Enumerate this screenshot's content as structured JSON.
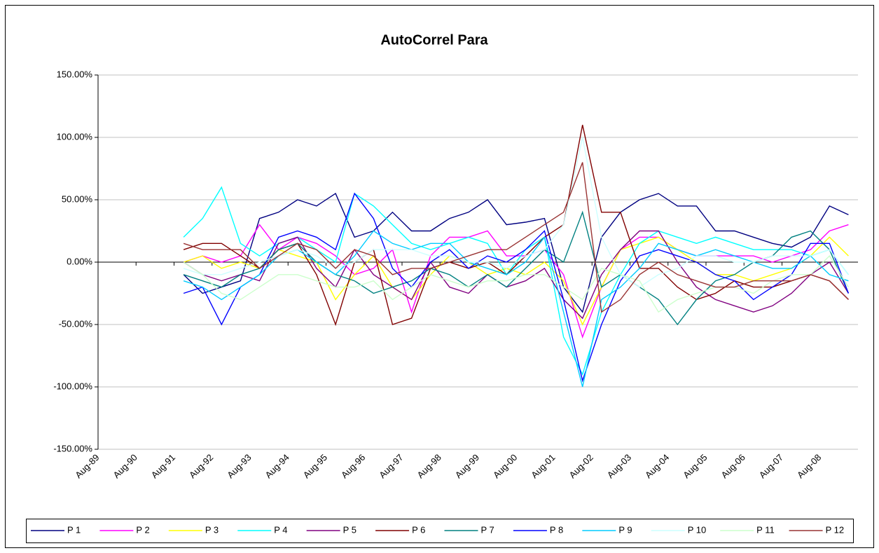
{
  "chart_data": {
    "type": "line",
    "title": "AutoCorrel Para",
    "categories": [
      "Aug-89",
      null,
      "Aug-90",
      null,
      "Aug-91",
      null,
      "Aug-92",
      null,
      "Aug-93",
      null,
      "Aug-94",
      null,
      "Aug-95",
      null,
      "Aug-96",
      null,
      "Aug-97",
      null,
      "Aug-98",
      null,
      "Aug-99",
      null,
      "Aug-00",
      null,
      "Aug-01",
      null,
      "Aug-02",
      null,
      "Aug-03",
      null,
      "Aug-04",
      null,
      "Aug-05",
      null,
      "Aug-06",
      null,
      "Aug-07",
      null,
      "Aug-08",
      null
    ],
    "ylim": [
      -150,
      150
    ],
    "yticks": [
      {
        "value": -150,
        "label": "-150.00%"
      },
      {
        "value": -100,
        "label": "-100.00%"
      },
      {
        "value": -50,
        "label": "-50.00%"
      },
      {
        "value": 0,
        "label": "0.00%"
      },
      {
        "value": 50,
        "label": "50.00%"
      },
      {
        "value": 100,
        "label": "100.00%"
      },
      {
        "value": 150,
        "label": "150.00%"
      }
    ],
    "grid": true,
    "legend": "bottom",
    "series": [
      {
        "name": "P 1",
        "color": "#000080",
        "values": [
          null,
          null,
          null,
          null,
          -10,
          -25,
          -20,
          -15,
          35,
          40,
          50,
          45,
          55,
          20,
          25,
          40,
          25,
          25,
          35,
          40,
          50,
          30,
          32,
          35,
          -20,
          -40,
          20,
          40,
          50,
          55,
          45,
          45,
          25,
          25,
          20,
          15,
          12,
          20,
          45,
          38
        ]
      },
      {
        "name": "P 2",
        "color": "#ff00ff",
        "values": [
          null,
          null,
          null,
          null,
          0,
          5,
          0,
          5,
          30,
          10,
          20,
          15,
          5,
          -10,
          -5,
          10,
          -40,
          5,
          20,
          20,
          25,
          5,
          5,
          10,
          -10,
          -60,
          -20,
          10,
          20,
          20,
          10,
          5,
          5,
          5,
          5,
          0,
          5,
          10,
          25,
          30
        ]
      },
      {
        "name": "P 3",
        "color": "#ffff00",
        "values": [
          null,
          null,
          null,
          null,
          0,
          5,
          -5,
          0,
          -5,
          10,
          5,
          0,
          -30,
          -10,
          5,
          -20,
          -30,
          -10,
          5,
          0,
          -10,
          -5,
          -10,
          0,
          -15,
          -50,
          -20,
          10,
          15,
          20,
          10,
          0,
          -10,
          -10,
          -15,
          -10,
          -5,
          5,
          20,
          5
        ]
      },
      {
        "name": "P 4",
        "color": "#00ffff",
        "values": [
          null,
          null,
          null,
          null,
          20,
          35,
          60,
          15,
          5,
          15,
          20,
          10,
          0,
          55,
          45,
          30,
          15,
          10,
          15,
          20,
          15,
          -10,
          10,
          20,
          -60,
          -90,
          -40,
          -10,
          15,
          25,
          20,
          15,
          20,
          15,
          10,
          10,
          10,
          5,
          10,
          -10
        ]
      },
      {
        "name": "P 5",
        "color": "#800080",
        "values": [
          null,
          null,
          null,
          null,
          0,
          -10,
          -15,
          -10,
          -15,
          15,
          20,
          -5,
          -20,
          10,
          -10,
          -20,
          -30,
          0,
          -20,
          -25,
          -10,
          -20,
          -15,
          -5,
          -30,
          -45,
          -10,
          10,
          25,
          25,
          0,
          -20,
          -30,
          -35,
          -40,
          -35,
          -25,
          -10,
          0,
          -25
        ]
      },
      {
        "name": "P 6",
        "color": "#800000",
        "values": [
          null,
          null,
          null,
          null,
          10,
          15,
          15,
          5,
          -5,
          10,
          15,
          -10,
          -50,
          0,
          10,
          -50,
          -45,
          -5,
          0,
          -5,
          0,
          -10,
          5,
          20,
          30,
          110,
          40,
          40,
          -5,
          -5,
          -20,
          -30,
          -25,
          -15,
          -20,
          -20,
          -15,
          -10,
          -15,
          -30
        ]
      },
      {
        "name": "P 7",
        "color": "#008080",
        "values": [
          null,
          null,
          null,
          null,
          -10,
          -15,
          -20,
          -10,
          -5,
          10,
          15,
          0,
          -10,
          -15,
          -25,
          -20,
          -15,
          -5,
          -10,
          -20,
          -10,
          -20,
          -5,
          10,
          0,
          40,
          -20,
          -10,
          -20,
          -30,
          -50,
          -30,
          -15,
          -10,
          0,
          5,
          20,
          25,
          10,
          -25
        ]
      },
      {
        "name": "P 8",
        "color": "#0000ff",
        "values": [
          null,
          null,
          null,
          null,
          -25,
          -20,
          -50,
          -20,
          -10,
          20,
          25,
          20,
          10,
          55,
          35,
          -5,
          -20,
          0,
          10,
          -5,
          5,
          0,
          10,
          25,
          -30,
          -95,
          -50,
          -15,
          5,
          10,
          5,
          0,
          -10,
          -15,
          -30,
          -20,
          -10,
          15,
          15,
          -25
        ]
      },
      {
        "name": "P 9",
        "color": "#00ccff",
        "values": [
          null,
          null,
          null,
          null,
          -15,
          -20,
          -30,
          -20,
          -10,
          5,
          10,
          0,
          -10,
          5,
          25,
          15,
          10,
          15,
          15,
          0,
          -5,
          -10,
          0,
          20,
          -40,
          -100,
          -30,
          -20,
          -5,
          15,
          10,
          5,
          10,
          5,
          0,
          -5,
          -5,
          5,
          -10,
          -15
        ]
      },
      {
        "name": "P 10",
        "color": "#ccffff",
        "values": [
          null,
          null,
          null,
          null,
          -5,
          -10,
          -10,
          -5,
          0,
          5,
          10,
          5,
          -5,
          0,
          10,
          10,
          10,
          5,
          5,
          0,
          0,
          -5,
          5,
          10,
          30,
          100,
          20,
          -10,
          -20,
          -10,
          -5,
          5,
          5,
          0,
          0,
          5,
          5,
          5,
          10,
          -10
        ]
      },
      {
        "name": "P 11",
        "color": "#ccffcc",
        "values": [
          null,
          null,
          null,
          null,
          0,
          -10,
          -25,
          -30,
          -20,
          -10,
          -10,
          -15,
          -20,
          -20,
          -15,
          -30,
          -20,
          -10,
          -15,
          -20,
          -15,
          -15,
          -10,
          -10,
          -20,
          -30,
          -5,
          -10,
          -15,
          -40,
          -30,
          -25,
          -20,
          -20,
          -25,
          -15,
          -10,
          -10,
          5,
          -20
        ]
      },
      {
        "name": "P 12",
        "color": "#993333",
        "values": [
          null,
          null,
          null,
          null,
          15,
          10,
          10,
          10,
          -5,
          5,
          15,
          10,
          -5,
          10,
          5,
          -10,
          -5,
          -5,
          0,
          5,
          10,
          10,
          20,
          30,
          40,
          80,
          -40,
          -30,
          -10,
          0,
          -10,
          -15,
          -20,
          -20,
          -15,
          -15,
          -15,
          -10,
          -15,
          -30
        ]
      }
    ]
  }
}
